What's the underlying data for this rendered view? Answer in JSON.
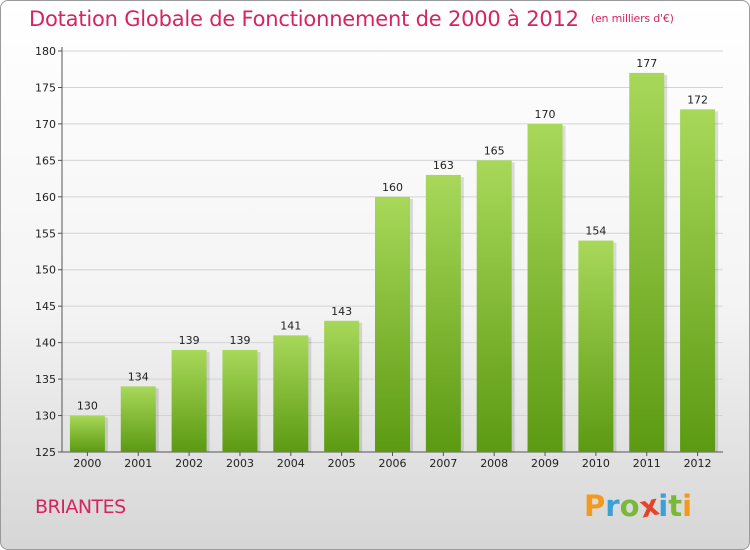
{
  "header": {
    "title": "Dotation Globale de Fonctionnement de 2000 à 2012",
    "unit": "(en milliers d'€)"
  },
  "footer": {
    "commune": "BRIANTES",
    "logo": [
      "P",
      "r",
      "o",
      "x",
      "i",
      "t",
      "i"
    ]
  },
  "colors": {
    "accent": "#d6245f",
    "bar_top": "#a8d85a",
    "bar_bottom": "#5c9a12",
    "logo": [
      "#f39a1d",
      "#3aa0d8",
      "#7ab83a",
      "#e4452a",
      "#3aa0d8",
      "#7ab83a",
      "#f39a1d"
    ]
  },
  "chart_data": {
    "type": "bar",
    "categories": [
      "2000",
      "2001",
      "2002",
      "2003",
      "2004",
      "2005",
      "2006",
      "2007",
      "2008",
      "2009",
      "2010",
      "2011",
      "2012"
    ],
    "values": [
      130,
      134,
      139,
      139,
      141,
      143,
      160,
      163,
      165,
      170,
      154,
      177,
      172
    ],
    "ylim": [
      125,
      180
    ],
    "yticks": [
      125,
      130,
      135,
      140,
      145,
      150,
      155,
      160,
      165,
      170,
      175,
      180
    ],
    "grid": true
  }
}
